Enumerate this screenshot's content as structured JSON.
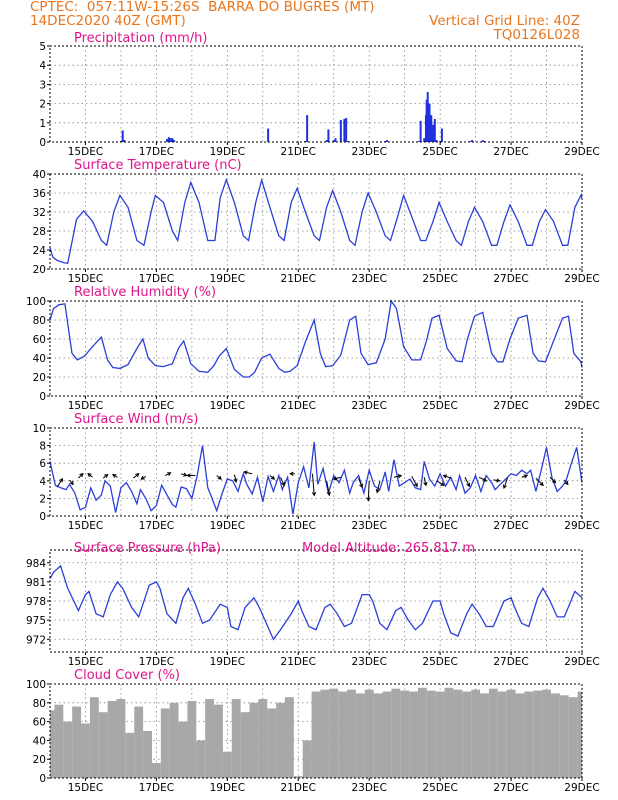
{
  "header": {
    "line1": "CPTEC:  057:11W-15:26S  BARRA DO BUGRES (MT)",
    "line2": "14DEC2020 40Z (GMT)",
    "grid_note": "Vertical Grid Line: 40Z",
    "code": "TQ0126L028"
  },
  "colors": {
    "header": "#e8761e",
    "title": "#e0148a",
    "line": "#2b3fd8",
    "bar": "#1e30e0",
    "cloud": "#a8a8a8",
    "grid": "#888888",
    "arrow": "#000000"
  },
  "x_tick_labels": [
    "15DEC",
    "17DEC",
    "19DEC",
    "21DEC",
    "23DEC",
    "25DEC",
    "27DEC",
    "29DEC"
  ],
  "chart_data": [
    {
      "type": "bar",
      "name": "precip",
      "title": "Precipitation (mm/h)",
      "x_range_days": [
        14.0,
        29.0
      ],
      "ylim": [
        0,
        5
      ],
      "yticks": [
        0,
        1,
        2,
        3,
        4,
        5
      ],
      "x": [
        16.0,
        16.05,
        16.1,
        17.3,
        17.35,
        17.4,
        17.45,
        17.5,
        20.15,
        21.2,
        21.25,
        21.8,
        21.85,
        22.0,
        22.05,
        22.2,
        22.3,
        22.35,
        22.4,
        23.45,
        23.5,
        24.4,
        24.45,
        24.55,
        24.6,
        24.62,
        24.65,
        24.7,
        24.75,
        24.8,
        24.85,
        24.9,
        25.0,
        25.05,
        25.85,
        25.9,
        26.2,
        26.25
      ],
      "values": [
        0.05,
        0.6,
        0.1,
        0.15,
        0.25,
        0.2,
        0.2,
        0.1,
        0.7,
        0.05,
        1.4,
        0.1,
        0.65,
        0.1,
        0.2,
        1.15,
        1.2,
        1.25,
        0.05,
        0.05,
        0.1,
        0.05,
        1.1,
        0.2,
        1.4,
        2.2,
        2.6,
        2.0,
        1.4,
        0.9,
        1.2,
        0.1,
        0.05,
        0.7,
        0.05,
        0.1,
        0.1,
        0.05
      ]
    },
    {
      "type": "line",
      "name": "temp",
      "title": "Surface Temperature (nC)",
      "x_range_days": [
        14.0,
        29.0
      ],
      "ylim": [
        20,
        40
      ],
      "yticks": [
        20,
        24,
        28,
        32,
        36,
        40
      ],
      "x": [
        14.0,
        14.08,
        14.2,
        14.4,
        14.5,
        14.75,
        14.95,
        15.2,
        15.45,
        15.6,
        15.8,
        15.97,
        16.2,
        16.45,
        16.65,
        16.85,
        16.97,
        17.2,
        17.45,
        17.6,
        17.8,
        17.97,
        18.2,
        18.45,
        18.65,
        18.8,
        18.97,
        19.2,
        19.45,
        19.6,
        19.8,
        19.97,
        20.2,
        20.45,
        20.6,
        20.8,
        20.97,
        21.2,
        21.45,
        21.6,
        21.8,
        21.97,
        22.2,
        22.45,
        22.6,
        22.8,
        22.97,
        23.2,
        23.45,
        23.6,
        23.8,
        23.97,
        24.2,
        24.45,
        24.6,
        24.8,
        24.97,
        25.2,
        25.45,
        25.6,
        25.8,
        25.97,
        26.2,
        26.45,
        26.6,
        26.8,
        26.97,
        27.2,
        27.45,
        27.6,
        27.8,
        27.97,
        28.2,
        28.45,
        28.6,
        28.8,
        28.97,
        29.0
      ],
      "values": [
        24.5,
        22.5,
        21.8,
        21.3,
        21.2,
        30.5,
        32.2,
        30,
        26,
        25,
        32,
        35.5,
        33,
        26,
        25,
        32,
        35.5,
        34,
        28,
        26,
        34,
        38.2,
        34,
        26,
        26,
        35,
        38.8,
        34,
        27,
        26,
        34,
        38.7,
        33,
        27,
        26,
        34,
        37,
        32,
        27,
        26,
        33,
        36.5,
        32,
        26,
        25,
        32,
        36,
        32,
        27,
        26,
        31,
        35.5,
        31,
        26,
        26,
        30,
        34,
        30,
        26,
        25,
        30,
        33,
        30,
        25,
        25,
        30,
        33.5,
        30,
        25,
        25,
        30,
        32.5,
        30,
        25,
        25,
        33,
        35.5,
        35
      ]
    },
    {
      "type": "line",
      "name": "rh",
      "title": "Relative Humidity (%)",
      "x_range_days": [
        14.0,
        29.0
      ],
      "ylim": [
        0,
        100
      ],
      "yticks": [
        0,
        20,
        40,
        60,
        80,
        100
      ],
      "x": [
        14.0,
        14.1,
        14.25,
        14.42,
        14.62,
        14.77,
        14.97,
        15.2,
        15.45,
        15.62,
        15.77,
        15.97,
        16.2,
        16.45,
        16.62,
        16.77,
        16.97,
        17.2,
        17.45,
        17.62,
        17.77,
        17.97,
        18.2,
        18.45,
        18.62,
        18.77,
        18.97,
        19.2,
        19.45,
        19.62,
        19.77,
        19.97,
        20.2,
        20.45,
        20.62,
        20.77,
        20.97,
        21.2,
        21.45,
        21.62,
        21.77,
        21.97,
        22.2,
        22.45,
        22.62,
        22.77,
        22.97,
        23.2,
        23.45,
        23.62,
        23.77,
        23.97,
        24.2,
        24.45,
        24.62,
        24.77,
        24.97,
        25.2,
        25.45,
        25.62,
        25.77,
        25.97,
        26.2,
        26.45,
        26.62,
        26.77,
        26.97,
        27.2,
        27.45,
        27.62,
        27.77,
        27.97,
        28.2,
        28.45,
        28.62,
        28.77,
        28.97,
        29.0
      ],
      "values": [
        80,
        92,
        96,
        97,
        45,
        38,
        42,
        52,
        62,
        38,
        30,
        29,
        33,
        50,
        60,
        40,
        32,
        31,
        34,
        50,
        58,
        34,
        26,
        25,
        32,
        42,
        50,
        28,
        20,
        20,
        25,
        40,
        44,
        29,
        25,
        26,
        32,
        57,
        80,
        45,
        31,
        32,
        43,
        80,
        84,
        45,
        33,
        35,
        60,
        100,
        92,
        52,
        38,
        38,
        59,
        82,
        85,
        50,
        37,
        36,
        60,
        84,
        88,
        45,
        36,
        36,
        60,
        82,
        85,
        45,
        37,
        36,
        58,
        82,
        84,
        45,
        36,
        30
      ]
    },
    {
      "type": "line",
      "name": "wind",
      "title": "Surface Wind (m/s)",
      "x_range_days": [
        14.0,
        29.0
      ],
      "ylim": [
        0,
        10
      ],
      "yticks": [
        0,
        2,
        4,
        6,
        8,
        10
      ],
      "x": [
        14.0,
        14.15,
        14.3,
        14.45,
        14.55,
        14.7,
        14.85,
        15.0,
        15.15,
        15.3,
        15.45,
        15.55,
        15.7,
        15.85,
        16.0,
        16.15,
        16.3,
        16.45,
        16.55,
        16.7,
        16.85,
        17.0,
        17.15,
        17.3,
        17.45,
        17.55,
        17.7,
        17.85,
        18.0,
        18.15,
        18.3,
        18.45,
        18.55,
        18.7,
        18.85,
        19.0,
        19.15,
        19.3,
        19.45,
        19.55,
        19.7,
        19.85,
        20.0,
        20.15,
        20.3,
        20.45,
        20.55,
        20.7,
        20.85,
        21.0,
        21.15,
        21.3,
        21.45,
        21.55,
        21.7,
        21.85,
        22.0,
        22.15,
        22.3,
        22.45,
        22.55,
        22.7,
        22.85,
        23.0,
        23.15,
        23.3,
        23.45,
        23.55,
        23.7,
        23.85,
        24.0,
        24.15,
        24.3,
        24.45,
        24.55,
        24.7,
        24.85,
        25.0,
        25.15,
        25.3,
        25.45,
        25.55,
        25.7,
        25.85,
        26.0,
        26.15,
        26.3,
        26.45,
        26.55,
        26.7,
        26.85,
        27.0,
        27.15,
        27.3,
        27.45,
        27.55,
        27.7,
        27.85,
        28.0,
        28.15,
        28.3,
        28.45,
        28.55,
        28.7,
        28.85,
        29.0
      ],
      "values": [
        6.2,
        3.5,
        3.2,
        3.0,
        3.6,
        2.6,
        0.7,
        1.0,
        3.2,
        1.8,
        2.4,
        4.0,
        3.4,
        0.4,
        3.2,
        3.8,
        2.8,
        1.4,
        3.0,
        2.0,
        0.6,
        1.2,
        3.5,
        2.4,
        1.3,
        1.0,
        3.3,
        3.1,
        2.0,
        4.6,
        8.0,
        3.2,
        2.2,
        0.6,
        2.5,
        4.2,
        4.0,
        2.8,
        4.8,
        3.6,
        2.5,
        4.4,
        1.6,
        4.5,
        2.8,
        4.6,
        3.0,
        4.4,
        0.2,
        3.8,
        5.6,
        3.2,
        8.4,
        3.6,
        5.4,
        2.6,
        4.6,
        3.8,
        5.2,
        2.6,
        3.8,
        4.6,
        2.6,
        5.2,
        3.4,
        3.0,
        5.0,
        2.8,
        6.4,
        3.4,
        3.8,
        4.2,
        3.2,
        3.0,
        6.2,
        4.2,
        3.4,
        4.8,
        3.4,
        4.4,
        3.0,
        4.6,
        2.6,
        3.2,
        4.6,
        2.8,
        4.6,
        3.8,
        3.0,
        3.6,
        4.2,
        4.8,
        4.6,
        5.2,
        4.8,
        5.2,
        2.8,
        5.2,
        7.8,
        4.4,
        2.8,
        3.4,
        4.0,
        6.0,
        7.8,
        3.8
      ],
      "arrows": [
        {
          "x": 14.2,
          "y": 3.3,
          "u": 0.6,
          "v": 0.9
        },
        {
          "x": 14.55,
          "y": 4.1,
          "u": 0.4,
          "v": -0.5
        },
        {
          "x": 14.8,
          "y": 4.3,
          "u": 0.5,
          "v": 0.5
        },
        {
          "x": 15.2,
          "y": 4.4,
          "u": -0.5,
          "v": 0.4
        },
        {
          "x": 15.5,
          "y": 4.3,
          "u": 0.5,
          "v": 0.4
        },
        {
          "x": 15.9,
          "y": 4.4,
          "u": -0.5,
          "v": 0.3
        },
        {
          "x": 16.35,
          "y": 4.3,
          "u": 0.6,
          "v": 0.5
        },
        {
          "x": 16.7,
          "y": 4.5,
          "u": -0.5,
          "v": -0.3
        },
        {
          "x": 17.25,
          "y": 4.6,
          "u": 0.6,
          "v": 0.3
        },
        {
          "x": 17.7,
          "y": 4.8,
          "u": 0.6,
          "v": -0.2
        },
        {
          "x": 18.1,
          "y": 4.6,
          "u": -0.9,
          "v": 0.0
        },
        {
          "x": 18.7,
          "y": 4.6,
          "u": 0.5,
          "v": -0.4
        },
        {
          "x": 19.2,
          "y": 4.7,
          "u": 0.2,
          "v": -0.8
        },
        {
          "x": 19.7,
          "y": 4.8,
          "u": -0.9,
          "v": 0.2
        },
        {
          "x": 20.2,
          "y": 4.6,
          "u": 0.5,
          "v": -0.4
        },
        {
          "x": 20.5,
          "y": 4.4,
          "u": 0.4,
          "v": -0.9
        },
        {
          "x": 20.9,
          "y": 4.8,
          "u": -0.5,
          "v": 0.0
        },
        {
          "x": 21.4,
          "y": 4.8,
          "u": 0.2,
          "v": -2.4
        },
        {
          "x": 21.8,
          "y": 4.0,
          "u": 0.3,
          "v": -1.6
        },
        {
          "x": 22.2,
          "y": 4.4,
          "u": -0.8,
          "v": -0.2
        },
        {
          "x": 22.7,
          "y": 4.3,
          "u": 0.4,
          "v": -1.0
        },
        {
          "x": 23.0,
          "y": 4.0,
          "u": -0.1,
          "v": -2.2
        },
        {
          "x": 23.3,
          "y": 4.0,
          "u": -0.3,
          "v": -1.3
        },
        {
          "x": 23.7,
          "y": 4.4,
          "u": 0.8,
          "v": 0.2
        },
        {
          "x": 24.2,
          "y": 4.5,
          "u": 0.6,
          "v": -1.1
        },
        {
          "x": 24.55,
          "y": 4.4,
          "u": 0.2,
          "v": -0.9
        },
        {
          "x": 24.9,
          "y": 4.0,
          "u": 0.8,
          "v": -0.5
        },
        {
          "x": 25.3,
          "y": 4.3,
          "u": -0.8,
          "v": 0.3
        },
        {
          "x": 25.7,
          "y": 4.4,
          "u": 0.5,
          "v": -1.0
        },
        {
          "x": 26.1,
          "y": 4.4,
          "u": 0.8,
          "v": -0.4
        },
        {
          "x": 26.5,
          "y": 4.1,
          "u": 0.7,
          "v": -0.1
        },
        {
          "x": 26.9,
          "y": 4.3,
          "u": -0.4,
          "v": -1.1
        },
        {
          "x": 27.3,
          "y": 4.4,
          "u": 0.6,
          "v": 0.2
        },
        {
          "x": 27.7,
          "y": 4.3,
          "u": 0.8,
          "v": -0.8
        },
        {
          "x": 28.1,
          "y": 4.4,
          "u": 0.6,
          "v": -0.6
        },
        {
          "x": 28.5,
          "y": 4.1,
          "u": 0.4,
          "v": -0.5
        }
      ]
    },
    {
      "type": "line",
      "name": "pressure",
      "title": "Surface Pressure (hPa)",
      "subtitle": "Model Altitude: 265.817 m",
      "x_range_days": [
        14.0,
        29.0
      ],
      "ylim": [
        970,
        986
      ],
      "yticks": [
        972,
        975,
        978,
        981,
        984
      ],
      "x": [
        14.0,
        14.1,
        14.3,
        14.5,
        14.8,
        15.0,
        15.1,
        15.3,
        15.5,
        15.7,
        15.9,
        16.05,
        16.3,
        16.5,
        16.8,
        17.0,
        17.1,
        17.3,
        17.55,
        17.75,
        17.9,
        18.1,
        18.3,
        18.5,
        18.8,
        19.0,
        19.1,
        19.3,
        19.5,
        19.75,
        19.9,
        20.1,
        20.3,
        20.5,
        20.8,
        21.0,
        21.1,
        21.3,
        21.5,
        21.75,
        21.9,
        22.1,
        22.3,
        22.5,
        22.8,
        23.0,
        23.1,
        23.3,
        23.5,
        23.75,
        23.9,
        24.1,
        24.3,
        24.5,
        24.8,
        25.0,
        25.1,
        25.3,
        25.5,
        25.75,
        25.9,
        26.1,
        26.3,
        26.5,
        26.8,
        27.0,
        27.1,
        27.3,
        27.5,
        27.75,
        27.9,
        28.1,
        28.3,
        28.5,
        28.8,
        29.0
      ],
      "values": [
        981.5,
        982.5,
        983.5,
        980,
        976.5,
        979,
        979.5,
        976,
        975.5,
        979,
        981,
        980,
        977,
        975.5,
        980.5,
        981,
        980,
        976,
        974.5,
        978.5,
        980,
        977.5,
        974.5,
        975,
        977.5,
        977,
        974,
        973.5,
        977,
        978.5,
        977,
        974.5,
        972,
        973.5,
        976,
        978,
        976.5,
        974,
        973.5,
        977,
        977.5,
        976,
        974,
        974.5,
        979,
        979,
        978,
        974.5,
        973.5,
        976.5,
        977,
        975,
        973.5,
        974.5,
        978,
        978,
        976,
        973,
        972.5,
        976,
        977.5,
        976,
        974,
        974,
        978,
        978.5,
        977,
        974.5,
        974,
        978.5,
        980,
        978,
        975.5,
        975.5,
        979.5,
        978.5
      ]
    },
    {
      "type": "bar",
      "name": "cloud",
      "title": "Cloud Cover (%)",
      "x_range_days": [
        14.0,
        29.0
      ],
      "ylim": [
        0,
        100
      ],
      "yticks": [
        0,
        20,
        40,
        60,
        80,
        100
      ],
      "x": [
        14.0,
        14.25,
        14.5,
        14.75,
        15.0,
        15.25,
        15.5,
        15.75,
        16.0,
        16.25,
        16.5,
        16.75,
        17.0,
        17.25,
        17.5,
        17.75,
        18.0,
        18.25,
        18.5,
        18.75,
        19.0,
        19.25,
        19.5,
        19.75,
        20.0,
        20.25,
        20.5,
        20.75,
        21.0,
        21.25,
        21.5,
        21.75,
        22.0,
        22.25,
        22.5,
        22.75,
        23.0,
        23.25,
        23.5,
        23.75,
        24.0,
        24.25,
        24.5,
        24.75,
        25.0,
        25.25,
        25.5,
        25.75,
        26.0,
        26.25,
        26.5,
        26.75,
        27.0,
        27.25,
        27.5,
        27.75,
        28.0,
        28.25,
        28.5,
        28.75,
        29.0
      ],
      "values": [
        72,
        78,
        60,
        76,
        58,
        86,
        70,
        82,
        84,
        48,
        76,
        50,
        16,
        74,
        80,
        60,
        82,
        40,
        84,
        78,
        28,
        84,
        70,
        80,
        84,
        74,
        80,
        86,
        2,
        40,
        92,
        94,
        95,
        92,
        94,
        90,
        94,
        90,
        92,
        95,
        93,
        92,
        96,
        93,
        92,
        96,
        94,
        92,
        94,
        90,
        95,
        92,
        94,
        90,
        92,
        93,
        94,
        90,
        88,
        86,
        92
      ]
    }
  ]
}
